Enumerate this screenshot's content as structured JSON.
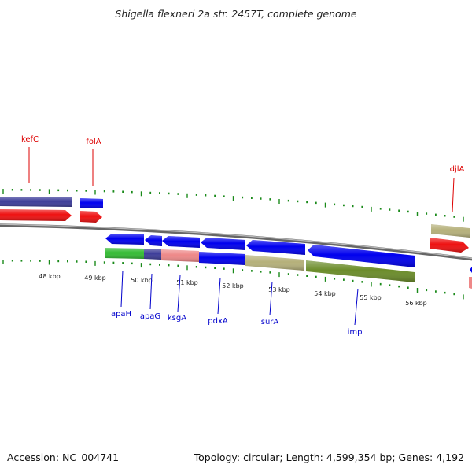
{
  "title": "Shigella flexneri 2a str. 2457T, complete genome",
  "footer": {
    "accession": "Accession: NC_004741",
    "summary": "Topology: circular; Length: 4,599,354 bp; Genes: 4,192"
  },
  "colors": {
    "backbone": "#888888",
    "tick": "#1a8a1a",
    "label_top": "#dd0000",
    "label_bottom": "#0000cc",
    "gene_blue": "#0000ee",
    "gene_red": "#ee1111",
    "gene_navy": "#3d3d99",
    "gene_khaki": "#b5b07a",
    "gene_green": "#33bb33",
    "gene_salmon": "#ee8888",
    "gene_olive": "#6b8c2a"
  },
  "kbp_labels": [
    "48 kbp",
    "49 kbp",
    "50 kbp",
    "51 kbp",
    "52 kbp",
    "53 kbp",
    "54 kbp",
    "55 kbp",
    "56 kbp"
  ],
  "top_labels": [
    "kefC",
    "folA",
    "djlA"
  ],
  "bottom_labels": [
    "apaH",
    "apaG",
    "ksgA",
    "pdxA",
    "surA",
    "imp"
  ]
}
